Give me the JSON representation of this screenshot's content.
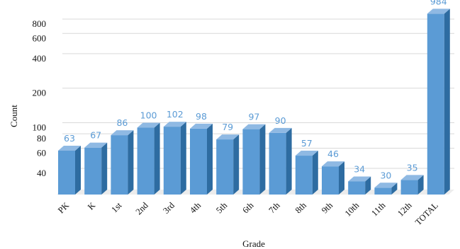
{
  "chart_data": {
    "type": "bar",
    "categories": [
      "PK",
      "K",
      "1st",
      "2nd",
      "3rd",
      "4th",
      "5th",
      "6th",
      "7th",
      "8th",
      "9th",
      "10th",
      "11th",
      "12th",
      "TOTAL"
    ],
    "values": [
      63,
      67,
      86,
      100,
      102,
      98,
      79,
      97,
      90,
      57,
      46,
      34,
      30,
      35,
      984
    ],
    "data_labels": [
      "63",
      "67",
      "86",
      "100",
      "102",
      "98",
      "79",
      "97",
      "90",
      "57",
      "46",
      "34",
      "30",
      "35",
      "984"
    ],
    "xlabel": "Grade",
    "ylabel": "Count",
    "y_scale": "log",
    "y_ticks": [
      40,
      60,
      80,
      100,
      200,
      400,
      600,
      800
    ],
    "y_tick_labels": [
      "40",
      "60",
      "80",
      "100",
      "200",
      "400",
      "600",
      "800"
    ],
    "ylim": [
      30,
      1000
    ],
    "grid": true,
    "bar_style": "3d",
    "colors": {
      "bar_front": "#5b9bd5",
      "bar_side": "#2e6ca1",
      "bar_top": "#8fb9e3",
      "label": "#5b9bd5",
      "floor": "#ececec"
    }
  }
}
